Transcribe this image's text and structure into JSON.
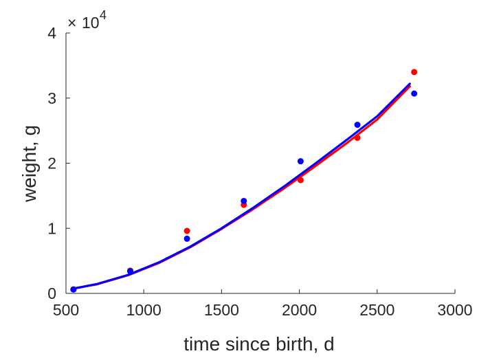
{
  "chart_data": {
    "type": "scatter",
    "xlabel": "time since birth, d",
    "ylabel": "weight, g",
    "xlim": [
      500,
      3000
    ],
    "ylim": [
      0,
      40000
    ],
    "xticks": [
      "500",
      "1000",
      "1500",
      "2000",
      "2500",
      "3000"
    ],
    "yticks": [
      "0",
      "1",
      "2",
      "3",
      "4"
    ],
    "y_exponent_label": "10",
    "y_exponent_power": "4",
    "y_exponent_prefix": "×",
    "grid": false,
    "series": [
      {
        "kind": "points",
        "color": "#ff0000",
        "points": [
          {
            "x": 548,
            "y": 600
          },
          {
            "x": 913,
            "y": 3500
          },
          {
            "x": 1278,
            "y": 9600
          },
          {
            "x": 1643,
            "y": 13600
          },
          {
            "x": 2008,
            "y": 17400
          },
          {
            "x": 2373,
            "y": 23900
          },
          {
            "x": 2738,
            "y": 34000
          }
        ]
      },
      {
        "kind": "points",
        "color": "#0000ff",
        "points": [
          {
            "x": 548,
            "y": 600
          },
          {
            "x": 913,
            "y": 3400
          },
          {
            "x": 1278,
            "y": 8400
          },
          {
            "x": 1643,
            "y": 14200
          },
          {
            "x": 2008,
            "y": 20300
          },
          {
            "x": 2373,
            "y": 25900
          },
          {
            "x": 2738,
            "y": 30700
          }
        ]
      },
      {
        "kind": "line",
        "color": "#ff0000",
        "points": [
          {
            "x": 548,
            "y": 750
          },
          {
            "x": 700,
            "y": 1400
          },
          {
            "x": 900,
            "y": 2800
          },
          {
            "x": 1100,
            "y": 4700
          },
          {
            "x": 1300,
            "y": 7100
          },
          {
            "x": 1500,
            "y": 9900
          },
          {
            "x": 1700,
            "y": 12900
          },
          {
            "x": 1900,
            "y": 16100
          },
          {
            "x": 2100,
            "y": 19500
          },
          {
            "x": 2300,
            "y": 23000
          },
          {
            "x": 2500,
            "y": 26700
          },
          {
            "x": 2710,
            "y": 31800
          }
        ]
      },
      {
        "kind": "line",
        "color": "#0000ff",
        "points": [
          {
            "x": 548,
            "y": 750
          },
          {
            "x": 700,
            "y": 1450
          },
          {
            "x": 900,
            "y": 2850
          },
          {
            "x": 1100,
            "y": 4800
          },
          {
            "x": 1300,
            "y": 7200
          },
          {
            "x": 1500,
            "y": 10000
          },
          {
            "x": 1700,
            "y": 13100
          },
          {
            "x": 1900,
            "y": 16400
          },
          {
            "x": 2100,
            "y": 19900
          },
          {
            "x": 2300,
            "y": 23500
          },
          {
            "x": 2500,
            "y": 27200
          },
          {
            "x": 2710,
            "y": 32200
          }
        ]
      }
    ]
  }
}
